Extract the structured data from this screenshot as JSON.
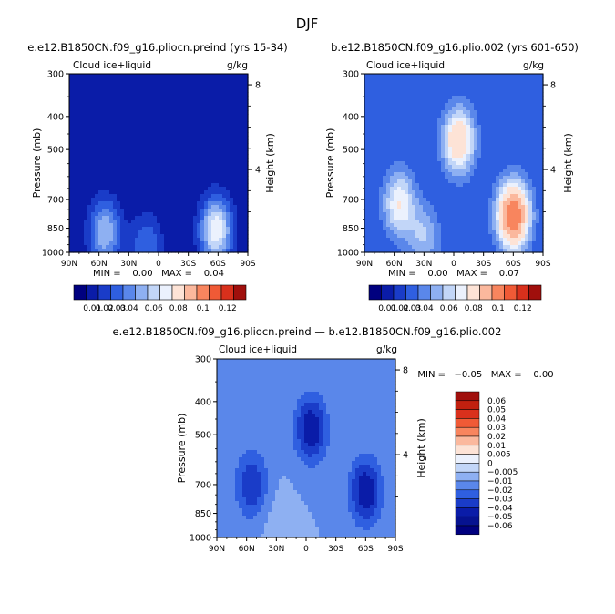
{
  "figure": {
    "main_title": "DJF"
  },
  "panels": [
    {
      "title": "e.e12.B1850CN.f09_g16.pliocn.preind (yrs 15-34)",
      "left_label": "Cloud ice+liquid",
      "right_label": "g/kg",
      "ylabel": "Pressure (mb)",
      "ylabel_right": "Height (km)",
      "y_ticks": [
        "300",
        "400",
        "500",
        "700",
        "850",
        "1000"
      ],
      "height_ticks": [
        "8",
        "4"
      ],
      "x_ticks": [
        "90N",
        "60N",
        "30N",
        "0",
        "30S",
        "60S",
        "90S"
      ],
      "stats": "MIN =    0.00   MAX =    0.04"
    },
    {
      "title": "b.e12.B1850CN.f09_g16.plio.002 (yrs 601-650)",
      "left_label": "Cloud ice+liquid",
      "right_label": "g/kg",
      "ylabel": "Pressure (mb)",
      "ylabel_right": "Height (km)",
      "y_ticks": [
        "300",
        "400",
        "500",
        "700",
        "850",
        "1000"
      ],
      "height_ticks": [
        "8",
        "4"
      ],
      "x_ticks": [
        "90N",
        "60N",
        "30N",
        "0",
        "30S",
        "60S",
        "90S"
      ],
      "stats": "MIN =    0.00   MAX =    0.07"
    },
    {
      "title": "e.e12.B1850CN.f09_g16.pliocn.preind — b.e12.B1850CN.f09_g16.plio.002",
      "left_label": "Cloud ice+liquid",
      "right_label": "g/kg",
      "ylabel": "Pressure (mb)",
      "ylabel_right": "Height (km)",
      "y_ticks": [
        "300",
        "400",
        "500",
        "700",
        "850",
        "1000"
      ],
      "height_ticks": [
        "8",
        "4"
      ],
      "x_ticks": [
        "90N",
        "60N",
        "30N",
        "0",
        "30S",
        "60S",
        "90S"
      ],
      "stats": "MIN =   −0.05   MAX =    0.00"
    }
  ],
  "colorbar_abs": {
    "labels": [
      "0.01",
      "0.02",
      "0.03",
      "0.04",
      "0.06",
      "0.08",
      "0.1",
      "0.12"
    ],
    "colors": [
      "#00007f",
      "#0a1ca8",
      "#1a3cc8",
      "#2f5fe0",
      "#5a87ea",
      "#8eb0f2",
      "#c2d6f8",
      "#ebf1fd",
      "#fde3d6",
      "#fbb89d",
      "#f8855e",
      "#f05a36",
      "#d9301c",
      "#a00f0c"
    ]
  },
  "colorbar_diff": {
    "labels": [
      "0.06",
      "0.05",
      "0.04",
      "0.03",
      "0.02",
      "0.01",
      "0.005",
      "0",
      "−0.005",
      "−0.01",
      "−0.02",
      "−0.03",
      "−0.04",
      "−0.05",
      "−0.06"
    ],
    "colors": [
      "#a00f0c",
      "#c1200f",
      "#d9301c",
      "#f05a36",
      "#f8855e",
      "#fbb89d",
      "#fde3d6",
      "#ebf1fd",
      "#c2d6f8",
      "#8eb0f2",
      "#5a87ea",
      "#2f5fe0",
      "#1a3cc8",
      "#0a1ca8",
      "#061290",
      "#00007f"
    ]
  },
  "chart_data": [
    {
      "type": "heatmap",
      "title": "e.e12.B1850CN.f09_g16.pliocn.preind (yrs 15-34)",
      "xlabel": "",
      "ylabel": "Pressure (mb)",
      "x": [
        "90N",
        "60N",
        "30N",
        "0",
        "30S",
        "60S",
        "90S"
      ],
      "y": [
        300,
        400,
        500,
        700,
        850,
        1000
      ],
      "units": "g/kg",
      "min": 0.0,
      "max": 0.04,
      "features": [
        {
          "lat": 54,
          "p": 870,
          "value": 0.03
        },
        {
          "lat": -58,
          "p": 860,
          "value": 0.04
        },
        {
          "lat": 12,
          "p": 960,
          "value": 0.02
        }
      ],
      "background_value": 0.005
    },
    {
      "type": "heatmap",
      "title": "b.e12.B1850CN.f09_g16.plio.002 (yrs 601-650)",
      "xlabel": "",
      "ylabel": "Pressure (mb)",
      "x": [
        "90N",
        "60N",
        "30N",
        "0",
        "30S",
        "60S",
        "90S"
      ],
      "y": [
        300,
        400,
        500,
        700,
        850,
        1000
      ],
      "units": "g/kg",
      "min": 0.0,
      "max": 0.07,
      "features": [
        {
          "lat": 55,
          "p": 720,
          "value": 0.04
        },
        {
          "lat": -60,
          "p": 780,
          "value": 0.07
        },
        {
          "lat": -5,
          "p": 470,
          "value": 0.05
        },
        {
          "lat": 30,
          "p": 900,
          "value": 0.03
        }
      ],
      "background_value": 0.015
    },
    {
      "type": "heatmap",
      "title": "e.e12.B1850CN.f09_g16.pliocn.preind — b.e12.B1850CN.f09_g16.plio.002",
      "xlabel": "",
      "ylabel": "Pressure (mb)",
      "x": [
        "90N",
        "60N",
        "30N",
        "0",
        "30S",
        "60S",
        "90S"
      ],
      "y": [
        300,
        400,
        500,
        700,
        850,
        1000
      ],
      "units": "g/kg",
      "min": -0.05,
      "max": 0.0,
      "features": [
        {
          "lat": 55,
          "p": 700,
          "value": -0.04
        },
        {
          "lat": -60,
          "p": 730,
          "value": -0.05
        },
        {
          "lat": -5,
          "p": 480,
          "value": -0.05
        },
        {
          "lat": 30,
          "p": 880,
          "value": -0.005
        }
      ],
      "background_value": -0.01
    }
  ]
}
